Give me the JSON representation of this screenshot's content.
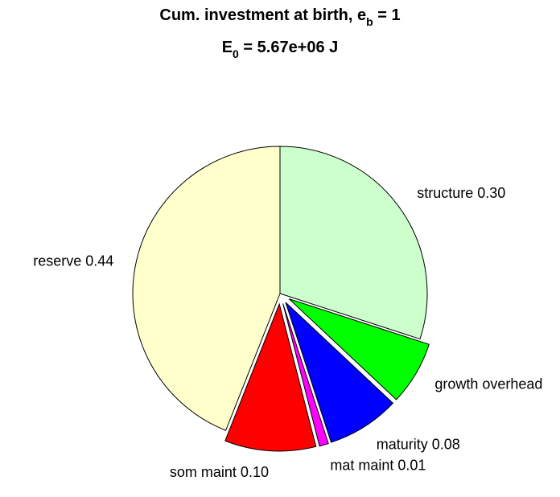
{
  "chart_data": {
    "type": "pie",
    "title": [
      [
        {
          "text": "Cum. investment at birth, e"
        },
        {
          "sub": "b"
        },
        {
          "text": " = 1"
        }
      ],
      [
        {
          "text": "E"
        },
        {
          "sub": "0"
        },
        {
          "text": " = 5.67e+06 J"
        }
      ]
    ],
    "categories": [
      "structure 0.30",
      "growth overhead",
      "maturity 0.08",
      "mat maint 0.01",
      "som maint 0.10",
      "reserve 0.44"
    ],
    "values": [
      0.3,
      0.07,
      0.08,
      0.01,
      0.1,
      0.44
    ],
    "colors": [
      "#ccffcc",
      "#00ff00",
      "#0000ff",
      "#ff00ff",
      "#ff0000",
      "#ffffcc"
    ],
    "explode": [
      false,
      true,
      true,
      true,
      true,
      false
    ],
    "direction": "clockwise"
  }
}
